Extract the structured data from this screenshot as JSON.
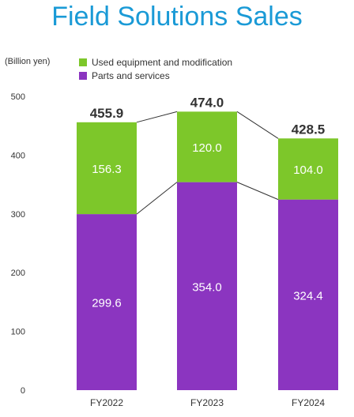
{
  "chart_data": {
    "type": "bar",
    "stacked": true,
    "title": "Field Solutions Sales",
    "unit_label": "(Billion yen)",
    "categories": [
      "FY2022",
      "FY2023",
      "FY2024"
    ],
    "series": [
      {
        "name": "Parts and services",
        "color": "#8b35c0",
        "values": [
          299.6,
          354.0,
          324.4
        ]
      },
      {
        "name": "Used equipment and modification",
        "color": "#7dc72a",
        "values": [
          156.3,
          120.0,
          104.0
        ]
      }
    ],
    "totals": [
      455.9,
      474.0,
      428.5
    ],
    "segment_labels": [
      [
        "299.6",
        "354.0",
        "324.4"
      ],
      [
        "156.3",
        "120.0",
        "104.0"
      ]
    ],
    "total_labels": [
      "455.9",
      "474.0",
      "428.5"
    ],
    "yticks": [
      "0",
      "100",
      "200",
      "300",
      "400",
      "500"
    ],
    "ytick_values": [
      0,
      100,
      200,
      300,
      400,
      500
    ],
    "ylim": [
      0,
      500
    ],
    "legend_position": "top",
    "grid": false
  }
}
